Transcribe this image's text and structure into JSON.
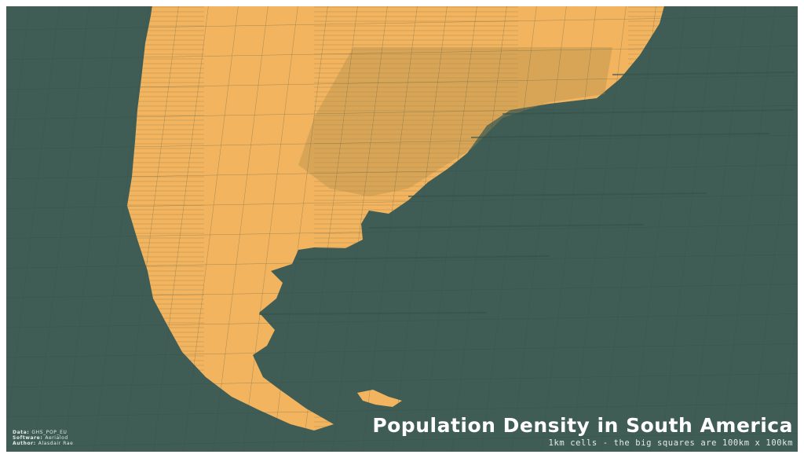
{
  "title": "Population Density in South America",
  "subtitle": "1km cells - the big squares are 100km x 100km",
  "credits": [
    {
      "label": "Data:",
      "value": "GHS_POP_EU"
    },
    {
      "label": "Software:",
      "value": "Aerialod"
    },
    {
      "label": "Author:",
      "value": "Alasdair Rae"
    }
  ]
}
